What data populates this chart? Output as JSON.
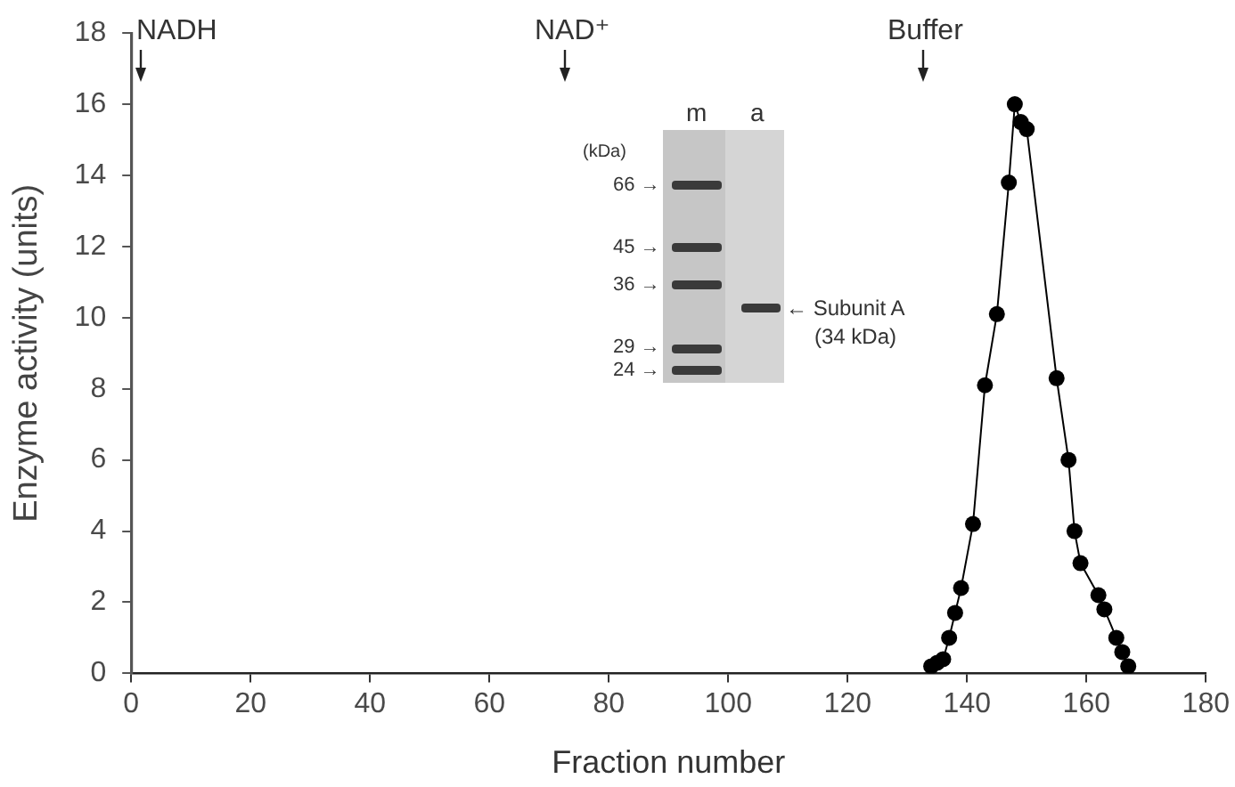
{
  "chart_data": {
    "type": "line",
    "xlabel": "Fraction number",
    "ylabel": "Enzyme activity (units)",
    "x": [
      134,
      135,
      136,
      137,
      138,
      139,
      141,
      143,
      145,
      147,
      148,
      149,
      150,
      155,
      157,
      158,
      159,
      162,
      163,
      165,
      166,
      167
    ],
    "series": [
      {
        "color": "#000000",
        "values": [
          0.2,
          0.3,
          0.4,
          1.0,
          1.7,
          2.4,
          4.2,
          8.1,
          10.1,
          13.8,
          16.0,
          15.5,
          15.3,
          8.3,
          6.0,
          4.0,
          3.1,
          2.2,
          1.8,
          1.0,
          0.6,
          0.2
        ]
      }
    ],
    "xlim": [
      0,
      180
    ],
    "xticks": [
      0,
      20,
      40,
      60,
      80,
      100,
      120,
      140,
      160,
      180
    ],
    "ylim": [
      0,
      18
    ],
    "yticks": [
      0,
      2,
      4,
      6,
      8,
      10,
      12,
      14,
      16,
      18
    ],
    "marker": "circle",
    "line_style": "solid",
    "annotations": [
      "NADH",
      "NAD⁺",
      "Buffer",
      "m",
      "a",
      "(kDa)",
      "66 →",
      "45 →",
      "36 →",
      "29 →",
      "24 →",
      "← Subunit A",
      "(34 kDa)"
    ]
  }
}
